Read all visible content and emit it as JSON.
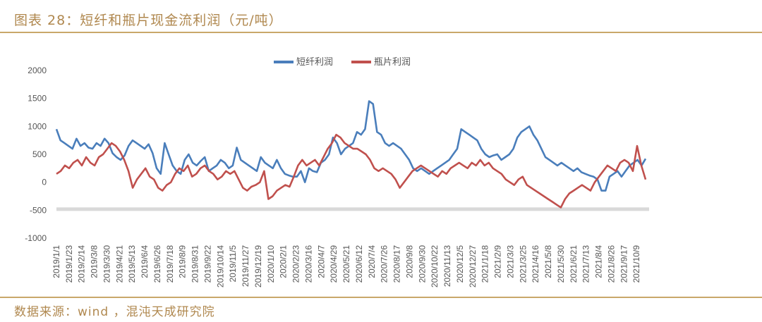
{
  "figure": {
    "title": "图表 28：短纤和瓶片现金流利润（元/吨）",
    "source": "数据来源：wind ，混沌天成研究院"
  },
  "chart_data": {
    "type": "line",
    "title": "",
    "xlabel": "",
    "ylabel": "",
    "ylim": [
      -1000,
      2000
    ],
    "yticks": [
      "2000",
      "1500",
      "1000",
      "500",
      "0",
      "-500",
      "-1000"
    ],
    "grid": false,
    "legend": "top-center",
    "x_tick_labels": [
      "2019/1/1",
      "2019/1/23",
      "2019/2/14",
      "2019/3/8",
      "2019/3/30",
      "2019/4/21",
      "2019/5/13",
      "2019/6/4",
      "2019/6/26",
      "2019/7/18",
      "2019/8/9",
      "2019/8/31",
      "2019/9/22",
      "2019/10/14",
      "2019/11/5",
      "2019/11/27",
      "2019/12/19",
      "2020/1/10",
      "2020/2/1",
      "2020/2/23",
      "2020/3/16",
      "2020/4/7",
      "2020/4/29",
      "2020/5/21",
      "2020/6/12",
      "2020/7/4",
      "2020/7/26",
      "2020/8/17",
      "2020/9/8",
      "2020/9/30",
      "2020/10/22",
      "2020/11/13",
      "2020/12/5",
      "2020/12/27",
      "2021/1/18",
      "2021/2/9",
      "2021/3/3",
      "2021/3/25",
      "2021/4/16",
      "2021/5/8",
      "2021/5/30",
      "2021/6/21",
      "2021/7/13",
      "2021/8/4",
      "2021/8/26",
      "2021/9/17",
      "2021/10/9"
    ],
    "series": [
      {
        "name": "短纤利润",
        "color": "#4a7ebb",
        "values": [
          950,
          750,
          700,
          650,
          600,
          780,
          650,
          700,
          620,
          600,
          700,
          650,
          780,
          700,
          520,
          450,
          400,
          480,
          650,
          750,
          700,
          650,
          600,
          680,
          520,
          250,
          150,
          700,
          500,
          300,
          200,
          150,
          400,
          500,
          350,
          300,
          380,
          450,
          200,
          250,
          300,
          400,
          350,
          250,
          300,
          620,
          400,
          350,
          300,
          250,
          200,
          450,
          350,
          300,
          250,
          400,
          250,
          150,
          120,
          100,
          100,
          200,
          0,
          250,
          200,
          180,
          350,
          400,
          500,
          800,
          700,
          500,
          600,
          650,
          700,
          900,
          850,
          950,
          1450,
          1400,
          900,
          850,
          700,
          650,
          700,
          650,
          600,
          500,
          400,
          250,
          200,
          250,
          200,
          150,
          200,
          250,
          300,
          350,
          400,
          500,
          600,
          950,
          900,
          850,
          800,
          750,
          600,
          500,
          450,
          480,
          500,
          400,
          450,
          500,
          600,
          800,
          900,
          950,
          1000,
          850,
          750,
          600,
          450,
          400,
          350,
          300,
          350,
          300,
          250,
          200,
          250,
          180,
          150,
          120,
          100,
          50,
          -150,
          -150,
          100,
          150,
          200,
          100,
          200,
          300,
          350,
          400,
          300,
          420
        ],
        "raw_note": ""
      },
      {
        "name": "瓶片利润",
        "color": "#c0504d",
        "values": [
          150,
          200,
          300,
          250,
          350,
          400,
          300,
          450,
          350,
          300,
          450,
          500,
          600,
          700,
          650,
          550,
          400,
          200,
          -100,
          50,
          150,
          250,
          100,
          50,
          -100,
          -150,
          -50,
          0,
          150,
          250,
          200,
          300,
          100,
          150,
          250,
          300,
          200,
          150,
          50,
          100,
          200,
          150,
          200,
          50,
          -100,
          -150,
          -80,
          -50,
          0,
          200,
          -300,
          -250,
          -150,
          -100,
          -50,
          -80,
          100,
          300,
          400,
          300,
          350,
          400,
          300,
          450,
          600,
          700,
          850,
          800,
          700,
          650,
          600,
          600,
          550,
          500,
          400,
          250,
          200,
          250,
          200,
          150,
          50,
          -100,
          0,
          100,
          200,
          250,
          300,
          250,
          200,
          150,
          100,
          200,
          150,
          250,
          300,
          350,
          300,
          250,
          350,
          300,
          400,
          300,
          350,
          250,
          200,
          150,
          50,
          0,
          -50,
          50,
          100,
          -50,
          -100,
          -150,
          -200,
          -250,
          -300,
          -350,
          -400,
          -450,
          -300,
          -200,
          -150,
          -100,
          -50,
          -100,
          -150,
          0,
          100,
          200,
          300,
          250,
          200,
          350,
          400,
          350,
          200,
          650,
          300,
          50
        ],
        "raw_note": ""
      }
    ]
  }
}
